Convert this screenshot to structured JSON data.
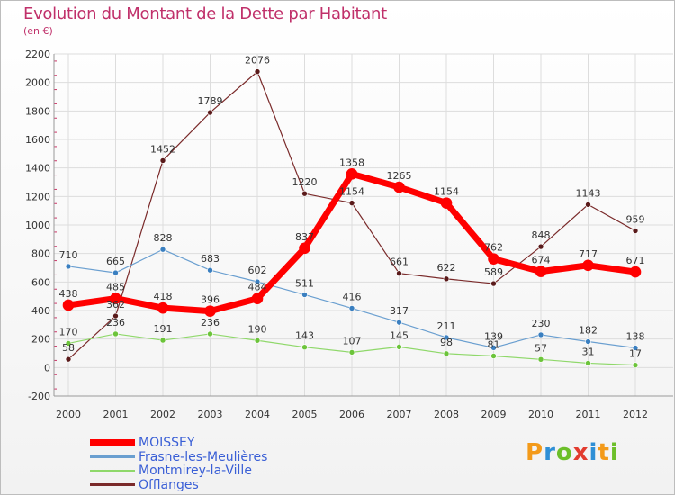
{
  "title": "Evolution du Montant de la Dette par Habitant",
  "subtitle": "(en €)",
  "logo": {
    "text": "Proxiti",
    "colors": [
      "#f39a1a",
      "#2e8fd6",
      "#6cbf2a",
      "#e23b2e",
      "#2e8fd6",
      "#f39a1a",
      "#6cbf2a"
    ]
  },
  "chart_data": {
    "type": "line",
    "x": [
      "2000",
      "2001",
      "2002",
      "2003",
      "2004",
      "2005",
      "2006",
      "2007",
      "2008",
      "2009",
      "2010",
      "2011",
      "2012"
    ],
    "ylim": [
      -200,
      2200
    ],
    "yticks": [
      -200,
      0,
      200,
      400,
      600,
      800,
      1000,
      1200,
      1400,
      1600,
      1800,
      2000,
      2200
    ],
    "grid": true,
    "legend_position": "bottom-left",
    "series": [
      {
        "name": "Offlanges",
        "color": "#7a2a2a",
        "point_color": "#5a1a1a",
        "width": 1.2,
        "radius": 3,
        "values": [
          58,
          362,
          1452,
          1789,
          2076,
          1220,
          1154,
          661,
          622,
          589,
          848,
          1143,
          959
        ],
        "labels": [
          "58",
          "362",
          "1452",
          "1789",
          "2076",
          "1220",
          "1154",
          "661",
          "622",
          "589",
          "848",
          "1143",
          "959"
        ]
      },
      {
        "name": "Montmirey-la-Ville",
        "color": "#8fd86a",
        "point_color": "#6cc43a",
        "width": 1.2,
        "radius": 3,
        "values": [
          170,
          236,
          191,
          236,
          190,
          143,
          107,
          145,
          98,
          81,
          57,
          31,
          17
        ],
        "labels": [
          "170",
          "236",
          "191",
          "236",
          "190",
          "143",
          "107",
          "145",
          "98",
          "81",
          "57",
          "31",
          "17"
        ]
      },
      {
        "name": "Frasne-les-Meulières",
        "color": "#6a9fd0",
        "point_color": "#3a7fc0",
        "width": 1.2,
        "radius": 3,
        "values": [
          710,
          665,
          828,
          683,
          602,
          511,
          416,
          317,
          211,
          139,
          230,
          182,
          138
        ],
        "labels": [
          "710",
          "665",
          "828",
          "683",
          "602",
          "511",
          "416",
          "317",
          "211",
          "139",
          "230",
          "182",
          "138"
        ]
      },
      {
        "name": "MOISSEY",
        "color": "#ff0000",
        "point_color": "#ff0000",
        "width": 7,
        "radius": 6,
        "values": [
          438,
          485,
          418,
          396,
          484,
          837,
          1358,
          1265,
          1154,
          762,
          674,
          717,
          671
        ],
        "labels": [
          "438",
          "485",
          "418",
          "396",
          "484",
          "837",
          "1358",
          "1265",
          "1154",
          "762",
          "674",
          "717",
          "671"
        ]
      }
    ],
    "legend_order": [
      "MOISSEY",
      "Frasne-les-Meulières",
      "Montmirey-la-Ville",
      "Offlanges"
    ]
  }
}
